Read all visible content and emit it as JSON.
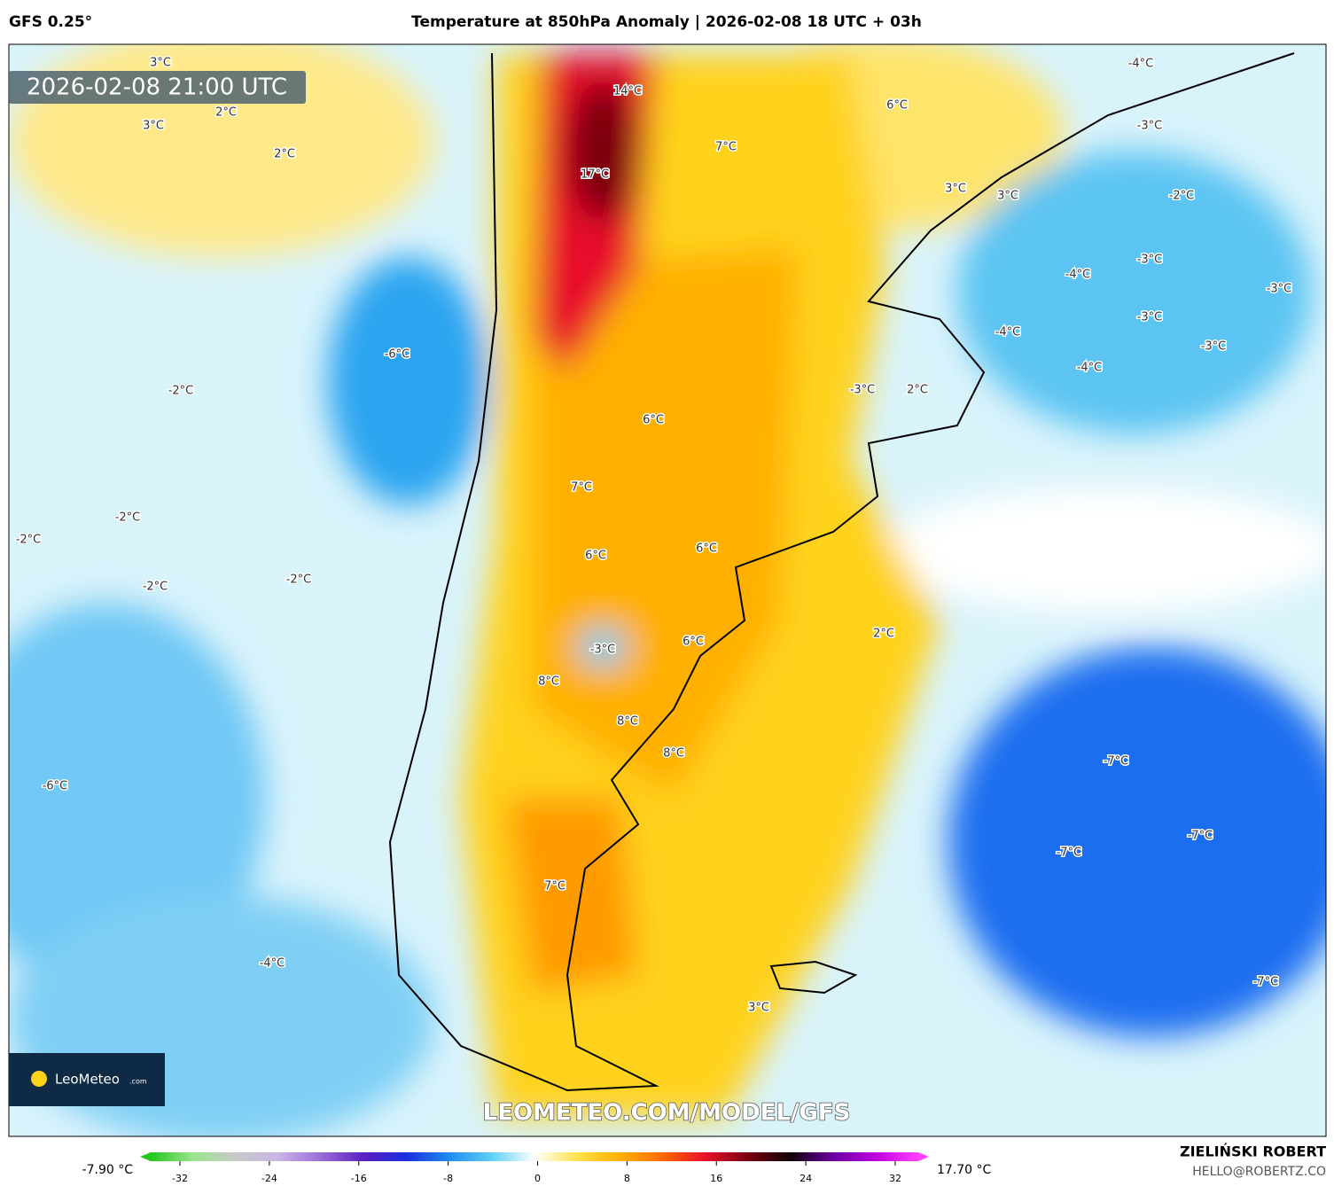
{
  "header": {
    "model": "GFS 0.25°",
    "title": "Temperature at 850hPa Anomaly | 2026-02-08 18 UTC + 03h"
  },
  "map": {
    "valid_time": "2026-02-08 21:00 UTC",
    "labels": [
      "3°C",
      "2°C",
      "3°C",
      "2°C",
      "14°C",
      "17°C",
      "7°C",
      "6°C",
      "-4°C",
      "-3°C",
      "3°C",
      "3°C",
      "-2°C",
      "-3°C",
      "-4°C",
      "-3°C",
      "-6°C",
      "-3°C",
      "-4°C",
      "-3°C",
      "-2°C",
      "-3°C",
      "2°C",
      "-4°C",
      "6°C",
      "7°C",
      "-2°C",
      "-2°C",
      "6°C",
      "6°C",
      "-2°C",
      "-2°C",
      "2°C",
      "6°C",
      "-3°C",
      "8°C",
      "8°C",
      "8°C",
      "-7°C",
      "-6°C",
      "-7°C",
      "-7°C",
      "7°C",
      "-4°C",
      "3°C",
      "-7°C"
    ],
    "logo": {
      "name": "LeoMeteo",
      "suffix": ".com"
    },
    "watermark": "LEOMETEO.COM/MODEL/GFS"
  },
  "colorbar": {
    "min_label": "-7.90 °C",
    "max_label": "17.70 °C",
    "ticks": [
      -32,
      -24,
      -16,
      -8,
      0,
      8,
      16,
      24,
      32
    ],
    "colors": [
      "#22c81e",
      "#9be58f",
      "#c8c8c8",
      "#c9b4e6",
      "#9a6cd8",
      "#5a1fc0",
      "#1a2ee0",
      "#1e8cf0",
      "#5fd0f5",
      "#ffffff",
      "#ffe14a",
      "#ffb000",
      "#ff6a00",
      "#e8102a",
      "#7a0010",
      "#100008",
      "#6a00a0",
      "#c000e0",
      "#ff40ff"
    ]
  },
  "footer": {
    "author": "ZIELIŃSKI ROBERT",
    "email": "HELLO@ROBERTZ.CO"
  }
}
